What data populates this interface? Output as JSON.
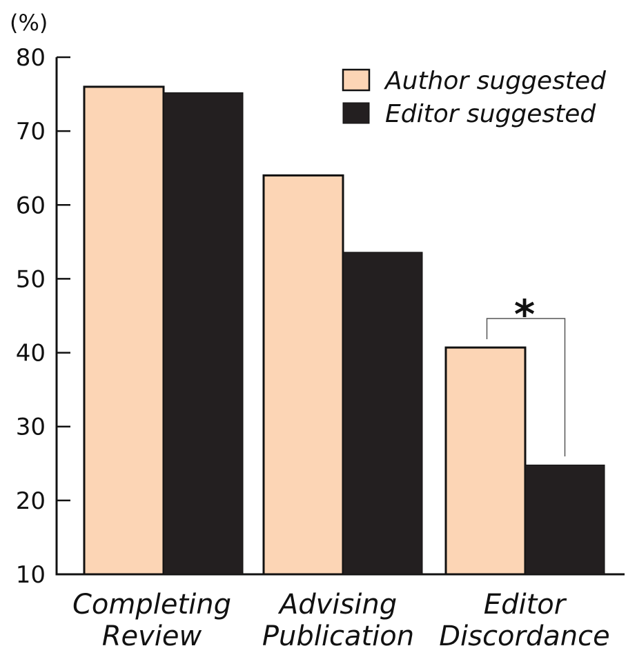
{
  "chart_data": {
    "type": "bar",
    "unit_label": "(%)",
    "categories": [
      [
        "Completing",
        "Review"
      ],
      [
        "Advising",
        "Publication"
      ],
      [
        "Editor",
        "Discordance"
      ]
    ],
    "series": [
      {
        "name": "Author suggested",
        "color": "#fcd5b5",
        "values": [
          76,
          64,
          40.7
        ]
      },
      {
        "name": "Editor suggested",
        "color": "#231f20",
        "values": [
          75.2,
          53.6,
          24.8
        ]
      }
    ],
    "ylim": [
      10,
      80
    ],
    "yticks": [
      "10",
      "20",
      "30",
      "40",
      "50",
      "60",
      "70",
      "80"
    ],
    "legend_position": "top-right",
    "grid": false,
    "annotations": [
      {
        "category_index": 2,
        "text": "*",
        "type": "significance-bracket"
      }
    ]
  }
}
